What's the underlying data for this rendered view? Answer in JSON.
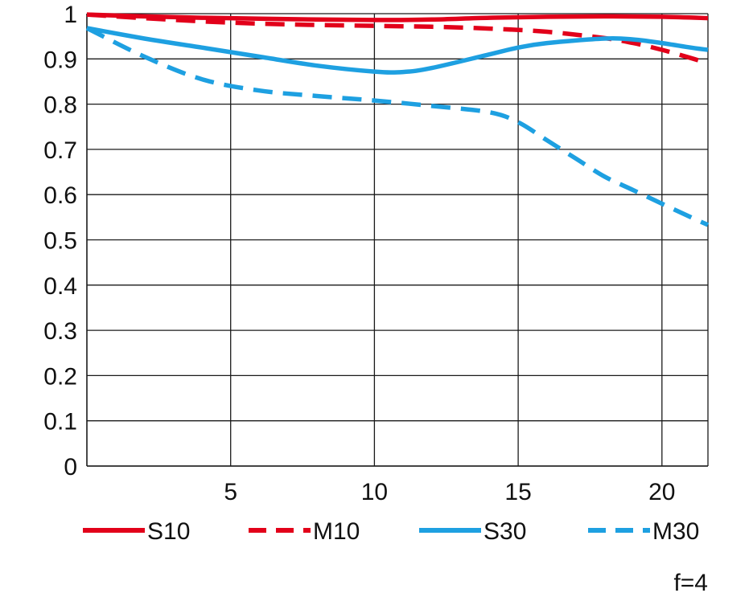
{
  "chart_data": {
    "type": "line",
    "title": "",
    "xlabel": "",
    "ylabel": "",
    "xlim": [
      0,
      21.6
    ],
    "ylim": [
      0,
      1
    ],
    "x_ticks": [
      5,
      10,
      15,
      20
    ],
    "x_tick_labels": [
      "5",
      "10",
      "15",
      "20"
    ],
    "y_ticks": [
      0,
      0.1,
      0.2,
      0.3,
      0.4,
      0.5,
      0.6,
      0.7,
      0.8,
      0.9,
      1
    ],
    "y_tick_labels": [
      "0",
      "0.1",
      "0.2",
      "0.3",
      "0.4",
      "0.5",
      "0.6",
      "0.7",
      "0.8",
      "0.9",
      "1"
    ],
    "grid": true,
    "legend_position": "bottom",
    "annotation": "f=4",
    "series": [
      {
        "name": "S10",
        "color": "#e2001a",
        "dash": "solid",
        "x": [
          0,
          2,
          4,
          6,
          8,
          10,
          12,
          14,
          16,
          18,
          20,
          21.6
        ],
        "y": [
          0.998,
          0.994,
          0.991,
          0.989,
          0.987,
          0.986,
          0.987,
          0.991,
          0.993,
          0.994,
          0.993,
          0.99
        ]
      },
      {
        "name": "M10",
        "color": "#e2001a",
        "dash": "dashed",
        "x": [
          0,
          2,
          4,
          6,
          8,
          10,
          12,
          14,
          16,
          18,
          19,
          20,
          21,
          21.6
        ],
        "y": [
          0.998,
          0.99,
          0.983,
          0.978,
          0.975,
          0.973,
          0.971,
          0.967,
          0.96,
          0.946,
          0.935,
          0.92,
          0.902,
          0.89
        ]
      },
      {
        "name": "S30",
        "color": "#1ea0e1",
        "dash": "solid",
        "x": [
          0,
          2,
          4,
          6,
          8,
          10,
          11,
          12,
          14,
          15,
          16,
          18,
          19,
          20,
          21,
          21.6
        ],
        "y": [
          0.968,
          0.945,
          0.925,
          0.905,
          0.885,
          0.872,
          0.871,
          0.88,
          0.91,
          0.925,
          0.935,
          0.945,
          0.943,
          0.935,
          0.925,
          0.92
        ]
      },
      {
        "name": "M30",
        "color": "#1ea0e1",
        "dash": "dashed",
        "x": [
          0,
          2,
          4,
          6,
          8,
          10,
          12,
          14,
          15,
          16,
          17,
          18,
          19,
          20,
          21,
          21.6
        ],
        "y": [
          0.968,
          0.905,
          0.855,
          0.83,
          0.818,
          0.808,
          0.796,
          0.782,
          0.76,
          0.72,
          0.68,
          0.64,
          0.61,
          0.58,
          0.55,
          0.533
        ]
      }
    ]
  }
}
